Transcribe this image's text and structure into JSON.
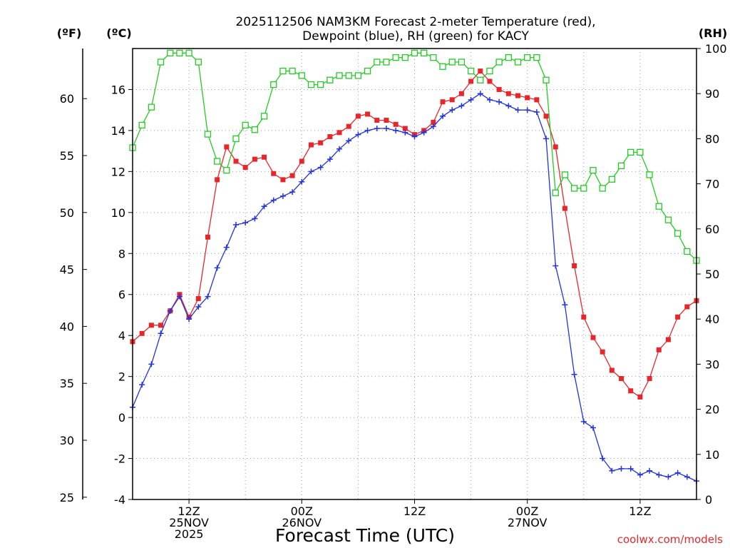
{
  "title": {
    "line1": "2025112506 NAM3KM Forecast 2-meter Temperature (red),",
    "line2": "Dewpoint (blue), RH (green) for KACY"
  },
  "units": {
    "fahrenheit": "(ºF)",
    "celsius": "(ºC)",
    "rh": "(RH)"
  },
  "xlabel": "Forecast Time (UTC)",
  "credit": "coolwx.com/models",
  "colors": {
    "temperature": "#e8262a",
    "dewpoint": "#2233dd",
    "rh": "#22cc22",
    "credit": "#e8262a"
  },
  "chart_data": {
    "type": "line",
    "x_unit": "forecast hour from 2025-11-25 06Z",
    "xlim": [
      0,
      60
    ],
    "ylim_c": [
      -4,
      18
    ],
    "ylim_rh": [
      0,
      100
    ],
    "yticks_c": [
      "-4",
      "-2",
      "0",
      "2",
      "4",
      "6",
      "8",
      "10",
      "12",
      "14",
      "16"
    ],
    "yticks_c_values": [
      -4,
      -2,
      0,
      2,
      4,
      6,
      8,
      10,
      12,
      14,
      16
    ],
    "yticks_f": [
      "25",
      "30",
      "35",
      "40",
      "45",
      "50",
      "55",
      "60"
    ],
    "yticks_f_values": [
      25,
      30,
      35,
      40,
      45,
      50,
      55,
      60
    ],
    "yticks_rh": [
      "0",
      "10",
      "20",
      "30",
      "40",
      "50",
      "60",
      "70",
      "80",
      "90",
      "100"
    ],
    "yticks_rh_values": [
      0,
      10,
      20,
      30,
      40,
      50,
      60,
      70,
      80,
      90,
      100
    ],
    "xticks": [
      {
        "hour": 6,
        "lines": [
          "12Z",
          "25NOV",
          "2025"
        ]
      },
      {
        "hour": 18,
        "lines": [
          "00Z",
          "26NOV"
        ]
      },
      {
        "hour": 30,
        "lines": [
          "12Z"
        ]
      },
      {
        "hour": 42,
        "lines": [
          "00Z",
          "27NOV"
        ]
      },
      {
        "hour": 54,
        "lines": [
          "12Z"
        ]
      }
    ],
    "vgrid_hours": [
      6,
      12,
      18,
      24,
      30,
      36,
      42,
      48,
      54
    ],
    "series": [
      {
        "name": "Temperature (°C)",
        "axis": "celsius",
        "marker": "filled-square",
        "color": "#e8262a",
        "x": [
          0,
          1,
          2,
          3,
          4,
          5,
          6,
          7,
          8,
          9,
          10,
          11,
          12,
          13,
          14,
          15,
          16,
          17,
          18,
          19,
          20,
          21,
          22,
          23,
          24,
          25,
          26,
          27,
          28,
          29,
          30,
          31,
          32,
          33,
          34,
          35,
          36,
          37,
          38,
          39,
          40,
          41,
          42,
          43,
          44,
          45,
          46,
          47,
          48,
          49,
          50,
          51,
          52,
          53,
          54,
          55,
          56,
          57,
          58,
          59,
          60
        ],
        "values": [
          3.7,
          4.1,
          4.5,
          4.5,
          5.2,
          6.0,
          4.9,
          5.8,
          8.8,
          11.6,
          13.2,
          12.5,
          12.2,
          12.6,
          12.7,
          11.9,
          11.6,
          11.8,
          12.5,
          13.3,
          13.4,
          13.7,
          13.9,
          14.2,
          14.7,
          14.8,
          14.5,
          14.5,
          14.3,
          14.1,
          13.8,
          14.0,
          14.4,
          15.4,
          15.5,
          15.8,
          16.4,
          16.9,
          16.4,
          16.0,
          15.8,
          15.7,
          15.6,
          15.5,
          14.7,
          13.2,
          10.2,
          7.4,
          4.9,
          3.9,
          3.2,
          2.3,
          1.9,
          1.3,
          1.0,
          1.9,
          3.3,
          3.8,
          4.9,
          5.4,
          5.7
        ]
      },
      {
        "name": "Dewpoint (°C)",
        "axis": "celsius",
        "marker": "plus",
        "color": "#2233dd",
        "x": [
          0,
          1,
          2,
          3,
          4,
          5,
          6,
          7,
          8,
          9,
          10,
          11,
          12,
          13,
          14,
          15,
          16,
          17,
          18,
          19,
          20,
          21,
          22,
          23,
          24,
          25,
          26,
          27,
          28,
          29,
          30,
          31,
          32,
          33,
          34,
          35,
          36,
          37,
          38,
          39,
          40,
          41,
          42,
          43,
          44,
          45,
          46,
          47,
          48,
          49,
          50,
          51,
          52,
          53,
          54,
          55,
          56,
          57,
          58,
          59,
          60
        ],
        "values": [
          0.5,
          1.6,
          2.6,
          4.1,
          5.2,
          5.9,
          4.8,
          5.4,
          5.9,
          7.3,
          8.3,
          9.4,
          9.5,
          9.7,
          10.3,
          10.6,
          10.8,
          11.0,
          11.5,
          12.0,
          12.2,
          12.6,
          13.1,
          13.5,
          13.8,
          14.0,
          14.1,
          14.1,
          14.0,
          13.9,
          13.7,
          13.9,
          14.2,
          14.7,
          15.0,
          15.2,
          15.5,
          15.8,
          15.5,
          15.4,
          15.2,
          15.0,
          15.0,
          14.9,
          13.6,
          7.4,
          5.5,
          2.1,
          -0.2,
          -0.5,
          -2.0,
          -2.6,
          -2.5,
          -2.5,
          -2.8,
          -2.6,
          -2.8,
          -2.9,
          -2.7,
          -2.9,
          -3.1
        ]
      },
      {
        "name": "RH (%)",
        "axis": "rh",
        "marker": "open-square",
        "color": "#22cc22",
        "x": [
          0,
          1,
          2,
          3,
          4,
          5,
          6,
          7,
          8,
          9,
          10,
          11,
          12,
          13,
          14,
          15,
          16,
          17,
          18,
          19,
          20,
          21,
          22,
          23,
          24,
          25,
          26,
          27,
          28,
          29,
          30,
          31,
          32,
          33,
          34,
          35,
          36,
          37,
          38,
          39,
          40,
          41,
          42,
          43,
          44,
          45,
          46,
          47,
          48,
          49,
          50,
          51,
          52,
          53,
          54,
          55,
          56,
          57,
          58,
          59,
          60
        ],
        "values": [
          78,
          83,
          87,
          97,
          99,
          99,
          99,
          97,
          81,
          75,
          73,
          80,
          83,
          82,
          85,
          92,
          95,
          95,
          94,
          92,
          92,
          93,
          94,
          94,
          94,
          95,
          97,
          97,
          98,
          98,
          99,
          99,
          98,
          96,
          97,
          97,
          95,
          93,
          95,
          97,
          98,
          97,
          98,
          98,
          93,
          68,
          72,
          69,
          69,
          73,
          69,
          71,
          74,
          77,
          77,
          72,
          65,
          62,
          59,
          55,
          53
        ]
      }
    ]
  }
}
